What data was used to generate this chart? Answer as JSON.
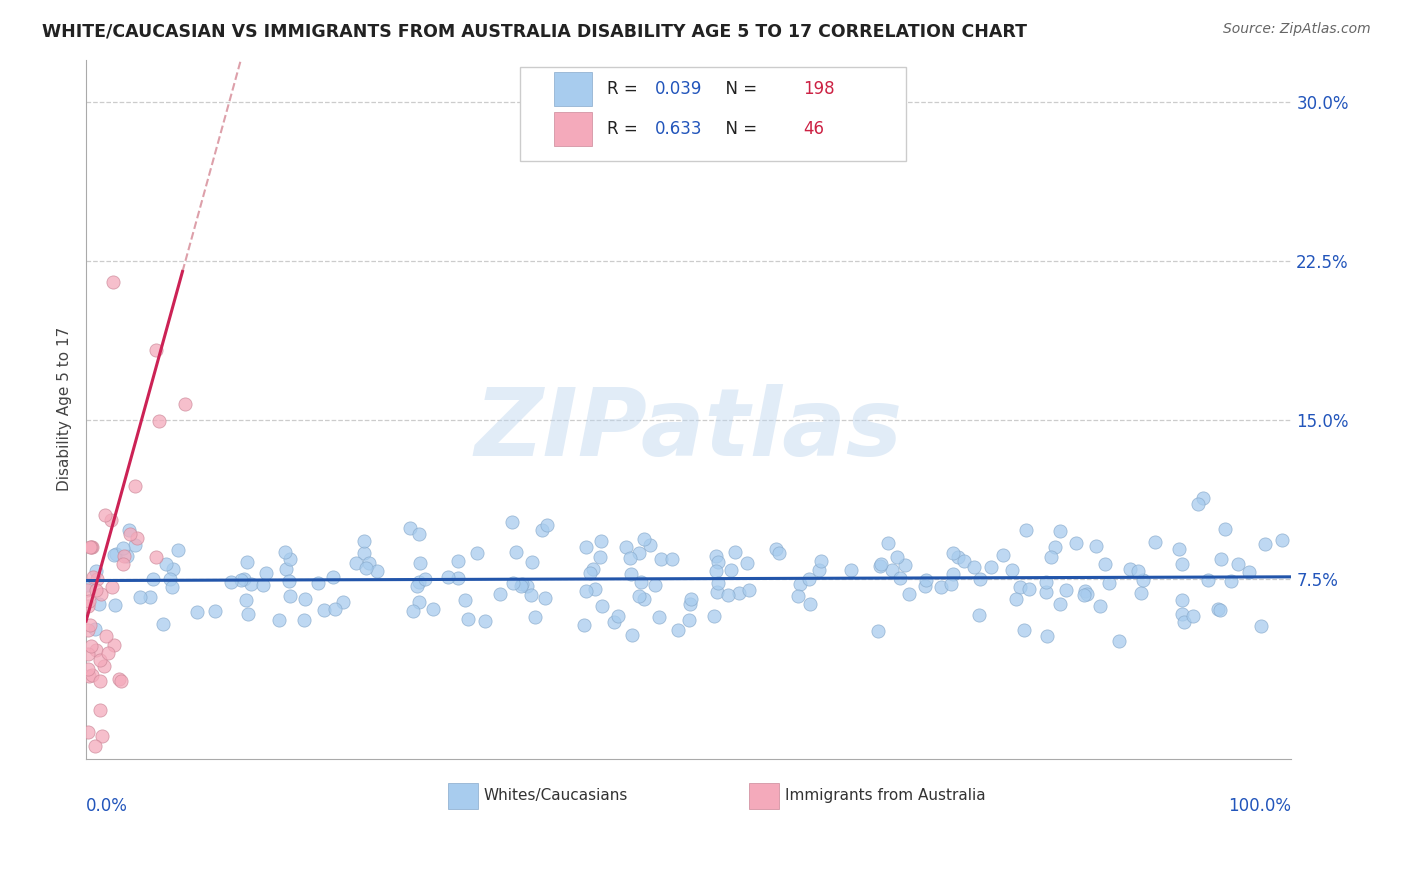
{
  "title": "WHITE/CAUCASIAN VS IMMIGRANTS FROM AUSTRALIA DISABILITY AGE 5 TO 17 CORRELATION CHART",
  "source_text": "Source: ZipAtlas.com",
  "ylabel": "Disability Age 5 to 17",
  "watermark": "ZIPatlas",
  "ylim": [
    0.0,
    0.32
  ],
  "xlim": [
    0.0,
    1.0
  ],
  "yticks": [
    0.075,
    0.15,
    0.225,
    0.3
  ],
  "ytick_labels": [
    "7.5%",
    "15.0%",
    "22.5%",
    "30.0%"
  ],
  "series1": {
    "label": "Whites/Caucasians",
    "R": 0.039,
    "N": 198,
    "marker_color": "#A8CCEE",
    "marker_edge_color": "#88AACC",
    "trend_color": "#2255AA"
  },
  "series2": {
    "label": "Immigrants from Australia",
    "R": 0.633,
    "N": 46,
    "marker_color": "#F4AABB",
    "marker_edge_color": "#CC8899",
    "trend_color": "#CC2255",
    "trend_dash_color": "#DDA0AA"
  },
  "legend_label_color": "#333333",
  "legend_R_color": "#2255BB",
  "legend_N_color": "#CC2244",
  "background_color": "#FFFFFF",
  "grid_color": "#CCCCCC",
  "title_color": "#222222",
  "source_color": "#666666",
  "axis_color": "#AAAAAA",
  "tick_label_color": "#2255BB"
}
